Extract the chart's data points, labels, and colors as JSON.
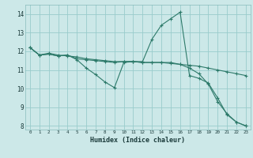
{
  "xlabel": "Humidex (Indice chaleur)",
  "bg_color": "#cce8e8",
  "grid_color": "#99cccc",
  "line_color": "#2d7a6a",
  "xlim": [
    -0.5,
    23.5
  ],
  "ylim": [
    7.8,
    14.5
  ],
  "xticks": [
    0,
    1,
    2,
    3,
    4,
    5,
    6,
    7,
    8,
    9,
    10,
    11,
    12,
    13,
    14,
    15,
    16,
    17,
    18,
    19,
    20,
    21,
    22,
    23
  ],
  "yticks": [
    8,
    9,
    10,
    11,
    12,
    13,
    14
  ],
  "curves": [
    {
      "x": [
        0,
        1,
        2,
        3,
        4,
        5,
        6,
        7,
        8,
        9,
        10,
        11,
        12,
        13,
        14,
        15,
        16,
        17,
        18,
        19,
        20,
        21,
        22,
        23
      ],
      "y": [
        12.2,
        11.8,
        11.9,
        11.8,
        11.75,
        11.7,
        11.6,
        11.55,
        11.5,
        11.45,
        11.45,
        11.45,
        11.4,
        11.4,
        11.4,
        11.35,
        11.3,
        11.25,
        11.2,
        11.1,
        11.0,
        10.9,
        10.8,
        10.7
      ]
    },
    {
      "x": [
        0,
        1,
        2,
        3,
        4,
        5,
        6,
        7,
        8,
        9,
        10,
        11,
        12,
        13,
        14,
        15,
        16,
        17,
        18,
        19,
        20,
        21,
        22,
        23
      ],
      "y": [
        12.2,
        11.8,
        11.85,
        11.75,
        11.8,
        11.55,
        11.1,
        10.75,
        10.35,
        10.05,
        11.4,
        11.45,
        11.45,
        12.65,
        13.4,
        13.75,
        14.1,
        10.7,
        10.55,
        10.3,
        9.5,
        8.6,
        8.2,
        8.0
      ]
    },
    {
      "x": [
        0,
        1,
        2,
        3,
        4,
        5,
        6,
        7,
        8,
        9,
        10,
        11,
        12,
        13,
        14,
        15,
        16,
        17,
        18,
        19,
        20,
        21,
        22,
        23
      ],
      "y": [
        12.2,
        11.8,
        11.85,
        11.75,
        11.8,
        11.6,
        11.55,
        11.5,
        11.45,
        11.4,
        11.45,
        11.45,
        11.4,
        11.4,
        11.4,
        11.4,
        11.3,
        11.1,
        10.8,
        10.25,
        9.3,
        8.65,
        8.2,
        8.0
      ]
    }
  ]
}
